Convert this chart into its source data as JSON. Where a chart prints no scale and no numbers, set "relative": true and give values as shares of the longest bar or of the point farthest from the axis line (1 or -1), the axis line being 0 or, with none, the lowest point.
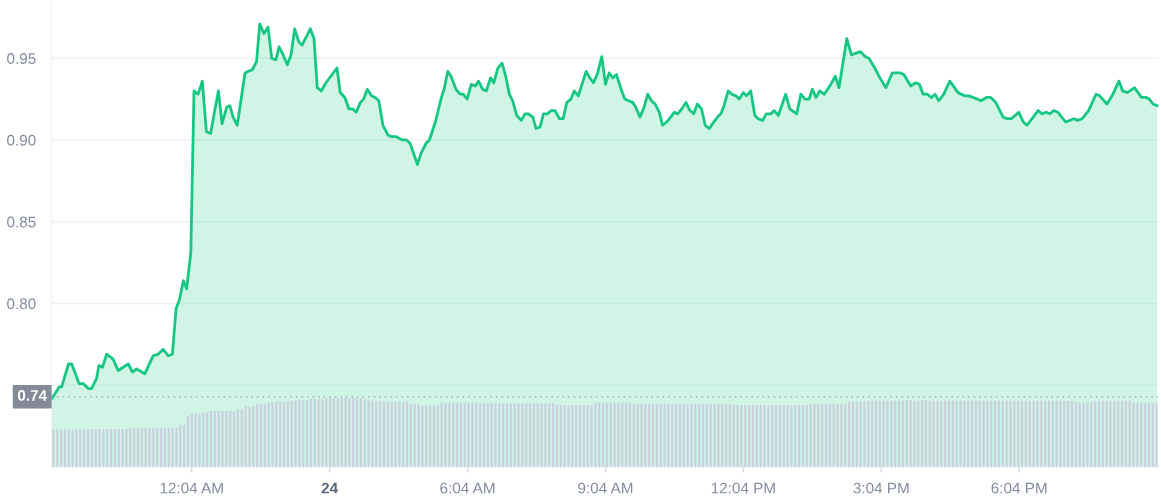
{
  "chart_data": [
    {
      "type": "area",
      "color": "#16c784",
      "x": [
        -2.97,
        -2.9,
        -2.81,
        -2.76,
        -2.61,
        -2.54,
        -2.38,
        -2.29,
        -2.18,
        -2.11,
        -2.0,
        -1.95,
        -1.87,
        -1.78,
        -1.64,
        -1.53,
        -1.31,
        -1.22,
        -1.13,
        -0.95,
        -0.77,
        -0.66,
        -0.55,
        -0.44,
        -0.35,
        -0.27,
        -0.2,
        -0.11,
        -0.04,
        0.05,
        0.12,
        0.21,
        0.3,
        0.39,
        0.48,
        0.65,
        0.73,
        0.83,
        0.9,
        0.97,
        1.06,
        1.23,
        1.3,
        1.39,
        1.48,
        1.55,
        1.64,
        1.73,
        1.81,
        1.9,
        1.97,
        2.06,
        2.15,
        2.23,
        2.31,
        2.4,
        2.47,
        2.65,
        2.73,
        2.8,
        2.89,
        2.99,
        3.23,
        3.3,
        3.4,
        3.49,
        3.57,
        3.65,
        3.74,
        3.81,
        3.89,
        3.98,
        4.06,
        4.14,
        4.23,
        4.34,
        4.41,
        4.52,
        4.65,
        4.74,
        4.82,
        4.98,
        5.06,
        5.17,
        5.24,
        5.37,
        5.5,
        5.56,
        5.64,
        5.71,
        5.82,
        5.91,
        5.98,
        6.06,
        6.15,
        6.24,
        6.31,
        6.4,
        6.48,
        6.57,
        6.64,
        6.73,
        6.82,
        6.9,
        6.98,
        7.05,
        7.14,
        7.24,
        7.32,
        7.39,
        7.49,
        7.56,
        7.65,
        7.72,
        7.8,
        7.89,
        7.97,
        8.07,
        8.15,
        8.23,
        8.32,
        8.39,
        8.48,
        8.65,
        8.73,
        8.81,
        8.9,
        8.99,
        9.07,
        9.15,
        9.23,
        9.31,
        9.41,
        9.49,
        9.57,
        9.66,
        9.73,
        9.82,
        9.91,
        9.99,
        10.07,
        10.15,
        10.24,
        10.31,
        10.4,
        10.49,
        10.57,
        10.64,
        10.73,
        10.82,
        10.91,
        10.99,
        11.07,
        11.16,
        11.24,
        11.33,
        11.4,
        11.51,
        11.58,
        11.65,
        11.74,
        11.82,
        11.91,
        11.98,
        12.07,
        12.14,
        12.23,
        12.32,
        12.39,
        12.49,
        12.57,
        12.67,
        12.74,
        12.83,
        12.99,
        13.08,
        13.23,
        13.32,
        13.41,
        13.5,
        13.57,
        13.65,
        13.73,
        13.83,
        13.97,
        14.07,
        14.15,
        14.32,
        14.42,
        14.51,
        14.62,
        14.72,
        14.8,
        14.91,
        15.04,
        15.17,
        15.31,
        15.49,
        15.56,
        15.71,
        15.82,
        15.9,
        15.98,
        16.07,
        16.16,
        16.24,
        16.32,
        16.43,
        16.56,
        16.74,
        16.81,
        16.89,
        16.98,
        17.07,
        17.16,
        17.24,
        17.36,
        17.45,
        17.56,
        17.72,
        17.81,
        17.9,
        18.06,
        18.16,
        18.24,
        18.48,
        18.57,
        18.66,
        18.74,
        18.82,
        18.91,
        19.08,
        19.26,
        19.34,
        19.44,
        19.58,
        19.74,
        19.82,
        19.98,
        20.09,
        20.24,
        20.32,
        20.42,
        20.58,
        20.73,
        20.83,
        20.9,
        20.98,
        21.07
      ],
      "values": [
        0.742,
        0.745,
        0.749,
        0.749,
        0.763,
        0.763,
        0.751,
        0.751,
        0.748,
        0.748,
        0.754,
        0.762,
        0.761,
        0.769,
        0.766,
        0.759,
        0.763,
        0.758,
        0.76,
        0.757,
        0.768,
        0.769,
        0.772,
        0.768,
        0.769,
        0.797,
        0.802,
        0.814,
        0.809,
        0.831,
        0.93,
        0.928,
        0.936,
        0.905,
        0.904,
        0.93,
        0.91,
        0.92,
        0.921,
        0.914,
        0.909,
        0.941,
        0.942,
        0.943,
        0.948,
        0.971,
        0.965,
        0.969,
        0.95,
        0.949,
        0.957,
        0.952,
        0.946,
        0.952,
        0.968,
        0.96,
        0.958,
        0.968,
        0.962,
        0.932,
        0.93,
        0.935,
        0.944,
        0.929,
        0.926,
        0.919,
        0.919,
        0.917,
        0.923,
        0.925,
        0.931,
        0.927,
        0.926,
        0.924,
        0.909,
        0.903,
        0.902,
        0.902,
        0.9,
        0.9,
        0.898,
        0.885,
        0.892,
        0.898,
        0.9,
        0.911,
        0.926,
        0.931,
        0.942,
        0.939,
        0.931,
        0.928,
        0.928,
        0.925,
        0.934,
        0.933,
        0.936,
        0.931,
        0.93,
        0.938,
        0.935,
        0.944,
        0.947,
        0.939,
        0.928,
        0.924,
        0.915,
        0.912,
        0.916,
        0.916,
        0.914,
        0.907,
        0.908,
        0.916,
        0.916,
        0.918,
        0.918,
        0.913,
        0.913,
        0.923,
        0.925,
        0.93,
        0.927,
        0.942,
        0.938,
        0.935,
        0.941,
        0.951,
        0.934,
        0.941,
        0.938,
        0.94,
        0.931,
        0.925,
        0.924,
        0.923,
        0.92,
        0.914,
        0.92,
        0.928,
        0.924,
        0.922,
        0.917,
        0.909,
        0.911,
        0.914,
        0.917,
        0.916,
        0.919,
        0.923,
        0.918,
        0.916,
        0.922,
        0.919,
        0.909,
        0.907,
        0.91,
        0.914,
        0.916,
        0.921,
        0.93,
        0.928,
        0.927,
        0.925,
        0.929,
        0.927,
        0.93,
        0.915,
        0.913,
        0.912,
        0.916,
        0.916,
        0.918,
        0.915,
        0.928,
        0.919,
        0.916,
        0.928,
        0.925,
        0.925,
        0.931,
        0.926,
        0.93,
        0.928,
        0.934,
        0.939,
        0.932,
        0.962,
        0.952,
        0.953,
        0.954,
        0.951,
        0.95,
        0.945,
        0.938,
        0.932,
        0.941,
        0.941,
        0.94,
        0.933,
        0.935,
        0.934,
        0.928,
        0.928,
        0.926,
        0.928,
        0.924,
        0.928,
        0.936,
        0.929,
        0.928,
        0.927,
        0.927,
        0.926,
        0.925,
        0.924,
        0.926,
        0.926,
        0.923,
        0.914,
        0.913,
        0.913,
        0.917,
        0.911,
        0.909,
        0.918,
        0.916,
        0.917,
        0.916,
        0.918,
        0.917,
        0.911,
        0.913,
        0.912,
        0.913,
        0.918,
        0.928,
        0.927,
        0.922,
        0.927,
        0.936,
        0.93,
        0.929,
        0.932,
        0.926,
        0.926,
        0.925,
        0.922,
        0.921
      ],
      "xlim": [
        -2.98,
        21.1
      ],
      "xticks": [
        {
          "value": 0.07,
          "label": "12:04 AM"
        },
        {
          "value": 3.07,
          "label": null
        },
        {
          "value": 6.07,
          "label": "6:04 AM"
        },
        {
          "value": 9.07,
          "label": "9:04 AM"
        },
        {
          "value": 12.07,
          "label": "12:04 PM"
        },
        {
          "value": 15.07,
          "label": "3:04 PM"
        },
        {
          "value": 18.07,
          "label": "6:04 PM"
        }
      ],
      "annotations": [
        "24"
      ],
      "ylim": [
        0.7,
        0.985
      ],
      "yticks": [
        {
          "value": 0.75,
          "label": null
        },
        {
          "value": 0.8,
          "label": "0.80"
        },
        0.85,
        {
          "value": 0.9,
          "label": "0.90"
        },
        0.95
      ],
      "grid": "y",
      "ref_lines": [
        {
          "axis": "y",
          "value": 0.743,
          "label": "0.74",
          "line_style": "dotted",
          "color": "#858a99"
        }
      ]
    },
    {
      "type": "bar",
      "color": "#c9cfdd",
      "relative": true,
      "categories": [
        null,
        null,
        null,
        null,
        null,
        null,
        null,
        null,
        null,
        null,
        null,
        null,
        null,
        null,
        null,
        null,
        null,
        null,
        null,
        null,
        null,
        null,
        null,
        null,
        null,
        null,
        null,
        null,
        null,
        null,
        null,
        null,
        null,
        null,
        null,
        null,
        null,
        null,
        null,
        null,
        null,
        null,
        null,
        null,
        null,
        null,
        null,
        null,
        null,
        null,
        null,
        null,
        null,
        null,
        null,
        null,
        null,
        null,
        null,
        null,
        null,
        null,
        null,
        null,
        null,
        null,
        null,
        null,
        null,
        null,
        null,
        null,
        null,
        null,
        null,
        null,
        null,
        null,
        null,
        null,
        null,
        null,
        null,
        null,
        null,
        null,
        null,
        null,
        null,
        null,
        null,
        null,
        null,
        null,
        null,
        null,
        null,
        null,
        null,
        null,
        null,
        null,
        null,
        null,
        null,
        null,
        null,
        null,
        null,
        null,
        null,
        null,
        null,
        null,
        null,
        null,
        null,
        null,
        null,
        null,
        null,
        null,
        null,
        null,
        null,
        null,
        null,
        null,
        null,
        null,
        null,
        null,
        null,
        null,
        null,
        null,
        null,
        null,
        null,
        null,
        null,
        null,
        null,
        null,
        null,
        null,
        null,
        null,
        null,
        null,
        null,
        null,
        null,
        null,
        null,
        null,
        null,
        null,
        null,
        null,
        null,
        null,
        null,
        null,
        null,
        null,
        null,
        null,
        null,
        null,
        null,
        null,
        null,
        null,
        null,
        null,
        null,
        null,
        null,
        null,
        null,
        null,
        null,
        null,
        null,
        null,
        null,
        null,
        null,
        null,
        null,
        null,
        null,
        null,
        null,
        null,
        null,
        null,
        null,
        null,
        null,
        null,
        null,
        null,
        null,
        null,
        null,
        null,
        null,
        null,
        null,
        null,
        null,
        null,
        null,
        null,
        null,
        null,
        null,
        null,
        null,
        null,
        null,
        null,
        null,
        null,
        null,
        null,
        null,
        null,
        null,
        null,
        null,
        null,
        null,
        null,
        null,
        null,
        null,
        null,
        null,
        null,
        null,
        null,
        null,
        null,
        null,
        null,
        null,
        null,
        null,
        null,
        null,
        null,
        null,
        null,
        null,
        null,
        null,
        null,
        null,
        null,
        null,
        null,
        null,
        null,
        null,
        null,
        null,
        null,
        null,
        null,
        null,
        null,
        null,
        null,
        null,
        null,
        null,
        null,
        null,
        null,
        null,
        null,
        null,
        null,
        null,
        null
      ],
      "values": [
        0.54,
        0.54,
        0.54,
        0.54,
        0.54,
        0.54,
        0.54,
        0.54,
        0.54,
        0.54,
        0.55,
        0.55,
        0.55,
        0.55,
        0.55,
        0.55,
        0.55,
        0.55,
        0.55,
        0.55,
        0.56,
        0.56,
        0.56,
        0.56,
        0.56,
        0.56,
        0.56,
        0.56,
        0.56,
        0.56,
        0.57,
        0.57,
        0.57,
        0.61,
        0.61,
        0.74,
        0.77,
        0.77,
        0.77,
        0.79,
        0.79,
        0.81,
        0.81,
        0.81,
        0.81,
        0.81,
        0.81,
        0.81,
        0.84,
        0.84,
        0.88,
        0.88,
        0.88,
        0.91,
        0.91,
        0.91,
        0.93,
        0.93,
        0.95,
        0.95,
        0.95,
        0.96,
        0.96,
        0.97,
        0.97,
        0.97,
        0.97,
        0.99,
        0.99,
        0.99,
        0.99,
        1,
        1,
        1,
        1,
        1,
        1,
        1,
        1,
        1,
        1,
        0.98,
        0.98,
        0.96,
        0.96,
        0.96,
        0.95,
        0.95,
        0.95,
        0.95,
        0.95,
        0.95,
        0.95,
        0.91,
        0.91,
        0.91,
        0.89,
        0.89,
        0.89,
        0.89,
        0.89,
        0.93,
        0.93,
        0.93,
        0.93,
        0.93,
        0.93,
        0.93,
        0.93,
        0.93,
        0.93,
        0.92,
        0.92,
        0.92,
        0.92,
        0.92,
        0.92,
        0.92,
        0.92,
        0.92,
        0.92,
        0.92,
        0.92,
        0.92,
        0.92,
        0.92,
        0.92,
        0.92,
        0.92,
        0.92,
        0.92,
        0.9,
        0.9,
        0.9,
        0.9,
        0.9,
        0.9,
        0.9,
        0.9,
        0.9,
        0.9,
        0.93,
        0.93,
        0.93,
        0.93,
        0.93,
        0.93,
        0.93,
        0.93,
        0.93,
        0.93,
        0.91,
        0.91,
        0.91,
        0.91,
        0.91,
        0.91,
        0.91,
        0.91,
        0.91,
        0.91,
        0.91,
        0.91,
        0.91,
        0.91,
        0.91,
        0.91,
        0.91,
        0.91,
        0.91,
        0.91,
        0.91,
        0.91,
        0.91,
        0.91,
        0.91,
        0.91,
        0.9,
        0.9,
        0.9,
        0.9,
        0.9,
        0.9,
        0.9,
        0.9,
        0.9,
        0.9,
        0.9,
        0.9,
        0.9,
        0.9,
        0.9,
        0.9,
        0.9,
        0.9,
        0.9,
        0.9,
        0.91,
        0.91,
        0.91,
        0.91,
        0.91,
        0.91,
        0.91,
        0.91,
        0.91,
        0.91,
        0.95,
        0.95,
        0.95,
        0.95,
        0.95,
        0.96,
        0.96,
        0.96,
        0.96,
        0.96,
        0.96,
        0.96,
        0.96,
        0.96,
        0.96,
        0.97,
        0.97,
        0.96,
        0.96,
        0.97,
        0.97,
        0.96,
        0.96,
        0.96,
        0.96,
        0.96,
        0.96,
        0.96,
        0.96,
        0.96,
        0.96,
        0.96,
        0.96,
        0.96,
        0.96,
        0.96,
        0.96,
        0.96,
        0.96,
        0.96,
        0.96,
        0.96,
        0.96,
        0.96,
        0.96,
        0.96,
        0.96,
        0.96,
        0.96,
        0.96,
        0.96,
        0.96,
        0.96,
        0.96,
        0.96,
        0.96,
        0.96,
        0.96,
        0.96,
        0.94,
        0.94,
        0.94,
        0.94,
        0.94,
        0.96,
        0.96,
        0.96,
        0.96,
        0.96,
        0.96,
        0.96,
        0.96,
        0.96,
        0.96,
        0.93,
        0.93,
        0.93,
        0.93,
        0.93,
        0.93,
        0.93
      ]
    }
  ]
}
